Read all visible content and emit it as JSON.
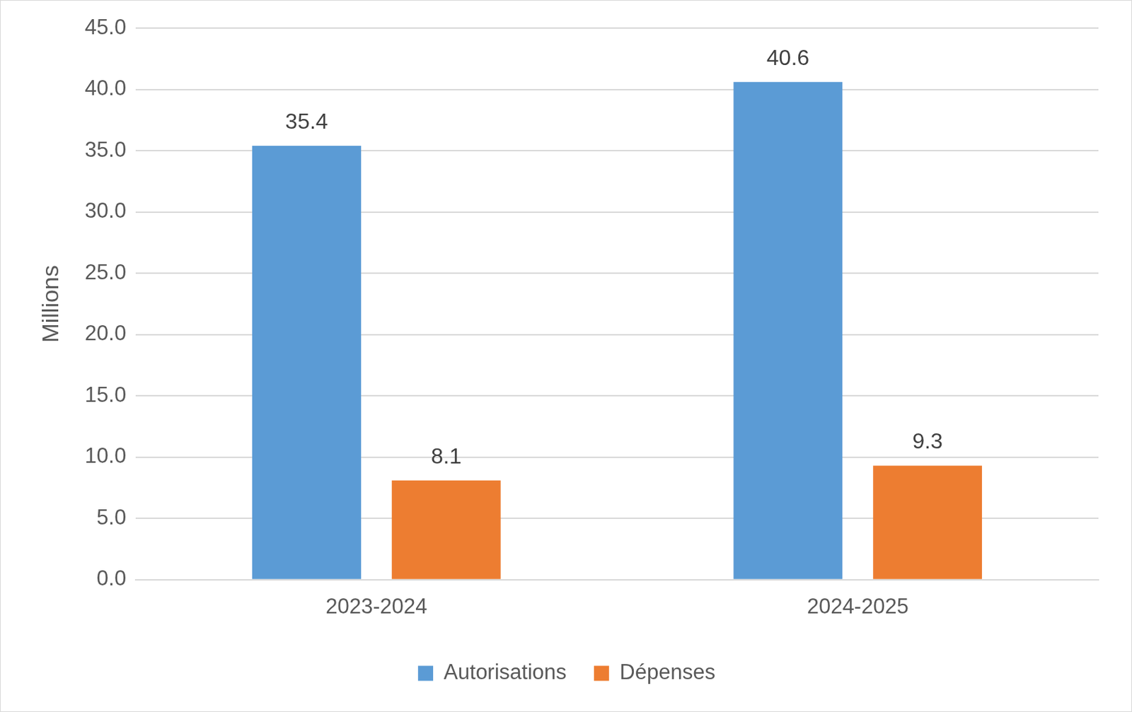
{
  "chart_data": {
    "type": "bar",
    "y_label": "Millions",
    "categories": [
      "2023-2024",
      "2024-2025"
    ],
    "series": [
      {
        "name": "Autorisations",
        "color": "#5b9bd5",
        "values": [
          35.4,
          40.6
        ]
      },
      {
        "name": "Dépenses",
        "color": "#ed7d31",
        "values": [
          8.1,
          9.3
        ]
      }
    ],
    "ylim": [
      0,
      45
    ],
    "yticks": [
      {
        "value": 0,
        "label": "0.0"
      },
      {
        "value": 5,
        "label": "5.0"
      },
      {
        "value": 10,
        "label": "10.0"
      },
      {
        "value": 15,
        "label": "15.0"
      },
      {
        "value": 20,
        "label": "20.0"
      },
      {
        "value": 25,
        "label": "25.0"
      },
      {
        "value": 30,
        "label": "30.0"
      },
      {
        "value": 35,
        "label": "35.0"
      },
      {
        "value": 40,
        "label": "40.0"
      },
      {
        "value": 45,
        "label": "45.0"
      }
    ],
    "grid": true,
    "legend": "bottom",
    "data_labels": true
  }
}
